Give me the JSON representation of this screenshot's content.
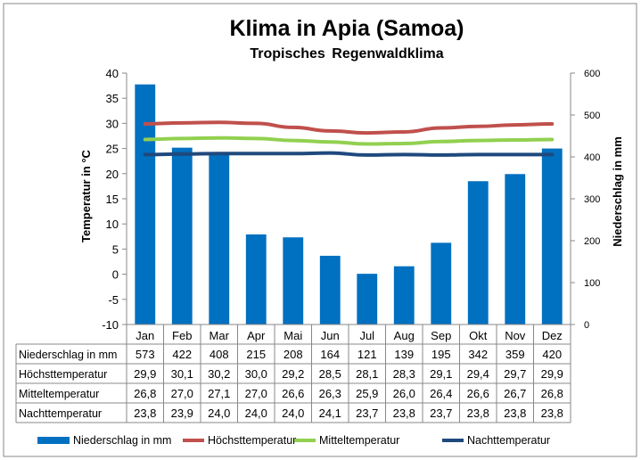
{
  "chart_data": {
    "type": "bar+line",
    "title": "Klima in Apia (Samoa)",
    "subtitle": "Tropisches Regenwaldklima",
    "ylabel_left": "Temperatur in °C",
    "ylabel_right": "Niederschlag in mm",
    "ylim_left": [
      -10,
      40
    ],
    "ylim_right": [
      0,
      600
    ],
    "yticks_left": [
      "40",
      "35",
      "30",
      "25",
      "20",
      "15",
      "10",
      "5",
      "0",
      "-5",
      "-10"
    ],
    "yticks_right": [
      "600",
      "500",
      "400",
      "300",
      "200",
      "100",
      "0"
    ],
    "grid": false,
    "legend_position": "bottom",
    "categories": [
      "Jan",
      "Feb",
      "Mar",
      "Apr",
      "Mai",
      "Jun",
      "Jul",
      "Aug",
      "Sep",
      "Okt",
      "Nov",
      "Dez"
    ],
    "series": [
      {
        "name": "Niederschlag in mm",
        "type": "bar",
        "axis": "right",
        "color": "#0070C0",
        "values": [
          573,
          422,
          408,
          215,
          208,
          164,
          121,
          139,
          195,
          342,
          359,
          420
        ],
        "labels": [
          "573",
          "422",
          "408",
          "215",
          "208",
          "164",
          "121",
          "139",
          "195",
          "342",
          "359",
          "420"
        ]
      },
      {
        "name": "Höchsttemperatur",
        "type": "line",
        "axis": "left",
        "color": "#C0504D",
        "values": [
          29.9,
          30.1,
          30.2,
          30.0,
          29.2,
          28.5,
          28.1,
          28.3,
          29.1,
          29.4,
          29.7,
          29.9
        ],
        "labels": [
          "29,9",
          "30,1",
          "30,2",
          "30,0",
          "29,2",
          "28,5",
          "28,1",
          "28,3",
          "29,1",
          "29,4",
          "29,7",
          "29,9"
        ]
      },
      {
        "name": "Mitteltemperatur",
        "type": "line",
        "axis": "left",
        "color": "#92D050",
        "values": [
          26.8,
          27.0,
          27.1,
          27.0,
          26.6,
          26.3,
          25.9,
          26.0,
          26.4,
          26.6,
          26.7,
          26.8
        ],
        "labels": [
          "26,8",
          "27,0",
          "27,1",
          "27,0",
          "26,6",
          "26,3",
          "25,9",
          "26,0",
          "26,4",
          "26,6",
          "26,7",
          "26,8"
        ]
      },
      {
        "name": "Nachttemperatur",
        "type": "line",
        "axis": "left",
        "color": "#1F497D",
        "values": [
          23.8,
          23.9,
          24.0,
          24.0,
          24.0,
          24.1,
          23.7,
          23.8,
          23.7,
          23.8,
          23.8,
          23.8
        ],
        "labels": [
          "23,8",
          "23,9",
          "24,0",
          "24,0",
          "24,0",
          "24,1",
          "23,7",
          "23,8",
          "23,7",
          "23,8",
          "23,8",
          "23,8"
        ]
      }
    ]
  }
}
